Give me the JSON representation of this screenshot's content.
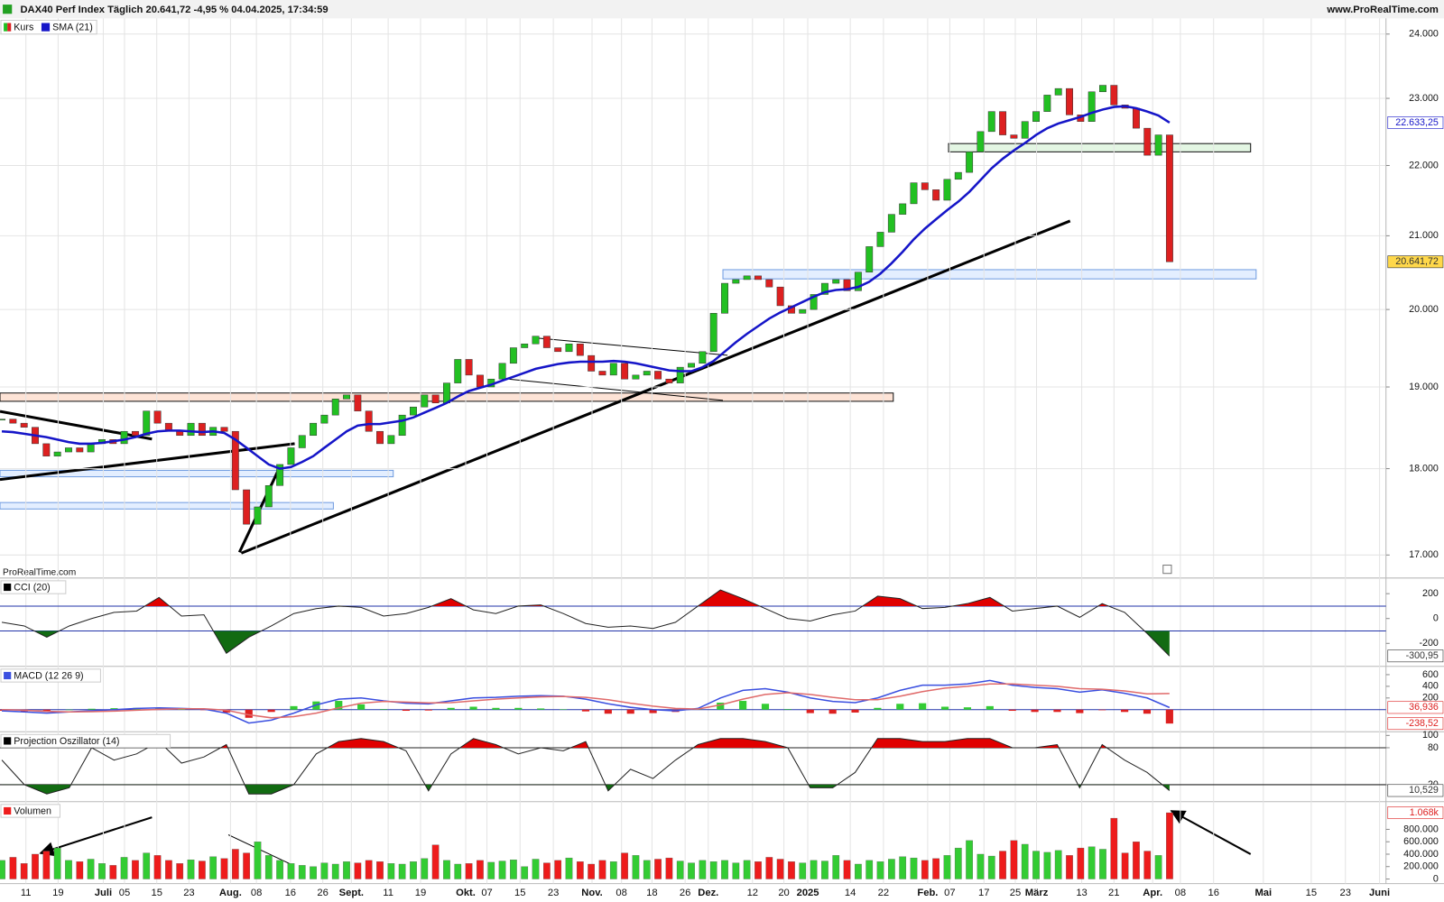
{
  "header": {
    "title": "DAX40 Perf Index Täglich 20.641,72 -4,95 % 04.04.2025, 17:34:59",
    "site": "www.ProRealTime.com",
    "brand": "ProRealTime.com"
  },
  "chart_data": [
    {
      "type": "candlestick",
      "log": true,
      "grid": true,
      "xlim": [
        -0.166,
        124.46
      ],
      "ylim": [
        16743,
        24250
      ],
      "yticks": [
        {
          "value": 24000,
          "label": "24.000"
        },
        {
          "value": 23000,
          "label": "23.000"
        },
        {
          "value": 22000,
          "label": "22.000"
        },
        {
          "value": 21000,
          "label": "21.000"
        },
        {
          "value": 20000,
          "label": "20.000"
        },
        {
          "value": 19000,
          "label": "19.000"
        },
        {
          "value": 18000,
          "label": "18.000"
        },
        {
          "value": 17000,
          "label": "17.000"
        }
      ],
      "xticks": [
        {
          "value": 2.16,
          "label": "11"
        },
        {
          "value": 5.06,
          "label": "19"
        },
        {
          "value": 9.12,
          "label": "Juli"
        },
        {
          "value": 11.03,
          "label": "05"
        },
        {
          "value": 13.93,
          "label": "15"
        },
        {
          "value": 16.83,
          "label": "23"
        },
        {
          "value": 20.56,
          "label": "Aug."
        },
        {
          "value": 22.89,
          "label": "08"
        },
        {
          "value": 25.95,
          "label": "16"
        },
        {
          "value": 28.86,
          "label": "26"
        },
        {
          "value": 31.43,
          "label": "Sept."
        },
        {
          "value": 34.74,
          "label": "11"
        },
        {
          "value": 37.65,
          "label": "19"
        },
        {
          "value": 41.71,
          "label": "Okt."
        },
        {
          "value": 43.62,
          "label": "07"
        },
        {
          "value": 46.6,
          "label": "15"
        },
        {
          "value": 49.59,
          "label": "23"
        },
        {
          "value": 53.07,
          "label": "Nov."
        },
        {
          "value": 55.72,
          "label": "08"
        },
        {
          "value": 58.46,
          "label": "18"
        },
        {
          "value": 61.44,
          "label": "26"
        },
        {
          "value": 63.52,
          "label": "Dez."
        },
        {
          "value": 67.5,
          "label": "12"
        },
        {
          "value": 70.32,
          "label": "20"
        },
        {
          "value": 72.47,
          "label": "2025"
        },
        {
          "value": 76.29,
          "label": "14"
        },
        {
          "value": 79.27,
          "label": "22"
        },
        {
          "value": 83.25,
          "label": "Feb."
        },
        {
          "value": 85.24,
          "label": "07"
        },
        {
          "value": 88.31,
          "label": "17"
        },
        {
          "value": 91.13,
          "label": "25"
        },
        {
          "value": 93.04,
          "label": "März"
        },
        {
          "value": 97.1,
          "label": "13"
        },
        {
          "value": 100.0,
          "label": "21"
        },
        {
          "value": 103.48,
          "label": "Apr."
        },
        {
          "value": 105.97,
          "label": "08"
        },
        {
          "value": 108.96,
          "label": "16"
        },
        {
          "value": 113.43,
          "label": "Mai"
        },
        {
          "value": 117.74,
          "label": "15"
        },
        {
          "value": 120.81,
          "label": "23"
        },
        {
          "value": 123.88,
          "label": "Juni"
        }
      ],
      "series": [
        {
          "name": "Kurs",
          "colors": [
            "#22c022",
            "#dd2020"
          ],
          "last_value_label": "20.641,72",
          "close": [
            18600,
            18550,
            18500,
            18300,
            18150,
            18200,
            18250,
            18200,
            18300,
            18350,
            18300,
            18450,
            18400,
            18700,
            18550,
            18450,
            18400,
            18550,
            18400,
            18500,
            18450,
            17750,
            17350,
            17550,
            17800,
            18050,
            18250,
            18400,
            18550,
            18650,
            18850,
            18900,
            18700,
            18450,
            18300,
            18400,
            18650,
            18750,
            18900,
            18800,
            19050,
            19350,
            19150,
            19000,
            19100,
            19300,
            19500,
            19550,
            19650,
            19500,
            19450,
            19550,
            19400,
            19200,
            19150,
            19300,
            19100,
            19150,
            19200,
            19100,
            19050,
            19250,
            19300,
            19450,
            19950,
            20350,
            20400,
            20450,
            20400,
            20300,
            20050,
            19950,
            20000,
            20200,
            20350,
            20400,
            20250,
            20500,
            20850,
            21050,
            21300,
            21450,
            21750,
            21650,
            21500,
            21800,
            21900,
            22200,
            22500,
            22800,
            22450,
            22400,
            22650,
            22800,
            23050,
            23150,
            22750,
            22650,
            23100,
            23200,
            22900,
            22850,
            22550,
            22150,
            22450,
            20641.72
          ]
        },
        {
          "name": "SMA (21)",
          "color": "#1515c8",
          "last_value_label": "22.633,25",
          "values": [
            18450,
            18440,
            18420,
            18400,
            18380,
            18350,
            18320,
            18300,
            18300,
            18310,
            18330,
            18350,
            18380,
            18420,
            18450,
            18460,
            18460,
            18450,
            18440,
            18450,
            18430,
            18350,
            18250,
            18150,
            18050,
            18000,
            18020,
            18080,
            18150,
            18250,
            18350,
            18450,
            18520,
            18540,
            18540,
            18560,
            18580,
            18620,
            18680,
            18740,
            18800,
            18880,
            18950,
            18990,
            19030,
            19080,
            19130,
            19180,
            19230,
            19260,
            19290,
            19310,
            19320,
            19320,
            19320,
            19330,
            19320,
            19300,
            19270,
            19240,
            19210,
            19200,
            19200,
            19250,
            19330,
            19450,
            19570,
            19680,
            19780,
            19880,
            19960,
            20030,
            20100,
            20170,
            20230,
            20260,
            20270,
            20300,
            20370,
            20480,
            20620,
            20780,
            20950,
            21100,
            21230,
            21360,
            21480,
            21620,
            21790,
            21960,
            22100,
            22220,
            22330,
            22450,
            22550,
            22620,
            22670,
            22720,
            22780,
            22830,
            22870,
            22880,
            22850,
            22800,
            22740,
            22633.25
          ]
        }
      ]
    },
    {
      "type": "line",
      "label": "CCI (20)",
      "xlim": [
        -0.082,
        61.64
      ],
      "ylim": [
        -385,
        326
      ],
      "yticks": [
        200,
        0,
        -200
      ],
      "levels": [
        100,
        -100
      ],
      "level_color": "#2233aa",
      "fill_colors": [
        "#e00000",
        "#126b12"
      ],
      "series": [
        {
          "color": "#222222",
          "last_value_label": "-300,95",
          "values": [
            -30,
            -60,
            -150,
            -60,
            0,
            50,
            60,
            170,
            20,
            30,
            -280,
            -150,
            -60,
            40,
            80,
            100,
            90,
            20,
            40,
            90,
            160,
            70,
            40,
            100,
            110,
            40,
            -40,
            -70,
            -60,
            -80,
            -30,
            100,
            230,
            160,
            80,
            0,
            -20,
            30,
            60,
            180,
            160,
            80,
            90,
            120,
            170,
            60,
            80,
            100,
            10,
            120,
            50,
            -120,
            -300.95
          ]
        }
      ]
    },
    {
      "type": "macd",
      "label": "MACD (12 26 9)",
      "xlim": [
        -0.082,
        61.64
      ],
      "ylim": [
        -379,
        742
      ],
      "yticks": [
        600,
        400,
        200
      ],
      "hist_colors": [
        "#33cc33",
        "#dd2020"
      ],
      "histogram_last_label": "-238,52",
      "histogram": [
        -20,
        -30,
        -30,
        0,
        15,
        25,
        30,
        25,
        5,
        -5,
        -50,
        -140,
        -40,
        60,
        140,
        150,
        90,
        10,
        -20,
        -15,
        30,
        50,
        30,
        30,
        20,
        5,
        -30,
        -70,
        -70,
        -60,
        -40,
        10,
        120,
        150,
        100,
        10,
        -60,
        -70,
        -50,
        30,
        100,
        110,
        50,
        40,
        60,
        -20,
        -40,
        -40,
        -60,
        -10,
        -40,
        -70,
        -238.52
      ],
      "series": [
        {
          "color": "#3a4fe0",
          "last_value_label": "36,936",
          "values": [
            -20,
            -40,
            -60,
            -40,
            -20,
            0,
            20,
            30,
            20,
            10,
            -60,
            -230,
            -180,
            -60,
            80,
            180,
            200,
            150,
            110,
            100,
            150,
            200,
            210,
            230,
            240,
            230,
            180,
            100,
            40,
            0,
            -20,
            20,
            200,
            330,
            360,
            300,
            200,
            140,
            120,
            200,
            330,
            420,
            420,
            440,
            500,
            420,
            380,
            360,
            300,
            340,
            280,
            200,
            36.936
          ]
        },
        {
          "color": "#e06a6a",
          "values": [
            0,
            -10,
            -30,
            -40,
            -35,
            -25,
            -10,
            5,
            15,
            15,
            -10,
            -90,
            -140,
            -120,
            -60,
            30,
            110,
            140,
            130,
            115,
            120,
            150,
            180,
            200,
            220,
            225,
            210,
            170,
            110,
            60,
            20,
            10,
            80,
            180,
            260,
            290,
            260,
            210,
            170,
            170,
            230,
            310,
            370,
            400,
            440,
            440,
            420,
            400,
            360,
            350,
            320,
            270,
            275.456
          ]
        }
      ]
    },
    {
      "type": "line",
      "label": "Projection Oszillator (14)",
      "xlim": [
        -0.082,
        61.64
      ],
      "ylim": [
        -7.6,
        106
      ],
      "yticks": [
        100,
        80,
        20
      ],
      "levels": [
        80,
        20
      ],
      "level_color": "#222222",
      "fill_colors": [
        "#e00000",
        "#126b12"
      ],
      "series": [
        {
          "color": "#222222",
          "last_value_label": "10,529",
          "values": [
            60,
            20,
            5,
            15,
            80,
            60,
            70,
            90,
            55,
            65,
            85,
            5,
            5,
            20,
            70,
            90,
            95,
            90,
            75,
            10,
            70,
            95,
            85,
            70,
            80,
            75,
            90,
            10,
            45,
            30,
            60,
            85,
            95,
            95,
            90,
            80,
            15,
            15,
            40,
            95,
            95,
            90,
            90,
            95,
            95,
            80,
            80,
            85,
            15,
            85,
            60,
            40,
            10.529
          ]
        }
      ]
    },
    {
      "type": "bar",
      "label": "Volumen",
      "xlim": [
        -0.166,
        124.46
      ],
      "ylim": [
        -74000,
        1246000
      ],
      "yticks": [
        {
          "value": 800000,
          "label": "800.000"
        },
        {
          "value": 600000,
          "label": "600.000"
        },
        {
          "value": 400000,
          "label": "400.000"
        },
        {
          "value": 200000,
          "label": "200.000"
        },
        0
      ],
      "colors": [
        "#33cc33",
        "#ee1c1c"
      ],
      "last_value_label": "1.068k",
      "values": [
        300000,
        350000,
        250000,
        400000,
        450000,
        500000,
        300000,
        280000,
        320000,
        250000,
        220000,
        350000,
        300000,
        420000,
        380000,
        300000,
        250000,
        310000,
        290000,
        360000,
        330000,
        480000,
        420000,
        600000,
        380000,
        300000,
        250000,
        220000,
        200000,
        260000,
        240000,
        280000,
        260000,
        300000,
        280000,
        250000,
        240000,
        280000,
        330000,
        550000,
        300000,
        240000,
        250000,
        300000,
        270000,
        290000,
        310000,
        200000,
        320000,
        260000,
        300000,
        340000,
        280000,
        240000,
        300000,
        280000,
        420000,
        380000,
        300000,
        320000,
        340000,
        290000,
        260000,
        300000,
        280000,
        300000,
        260000,
        300000,
        280000,
        350000,
        320000,
        280000,
        260000,
        300000,
        290000,
        380000,
        300000,
        240000,
        300000,
        280000,
        320000,
        360000,
        340000,
        300000,
        330000,
        380000,
        500000,
        620000,
        400000,
        370000,
        450000,
        620000,
        560000,
        450000,
        430000,
        460000,
        380000,
        500000,
        520000,
        480000,
        980000,
        420000,
        600000,
        450000,
        380000,
        1068000
      ]
    }
  ]
}
